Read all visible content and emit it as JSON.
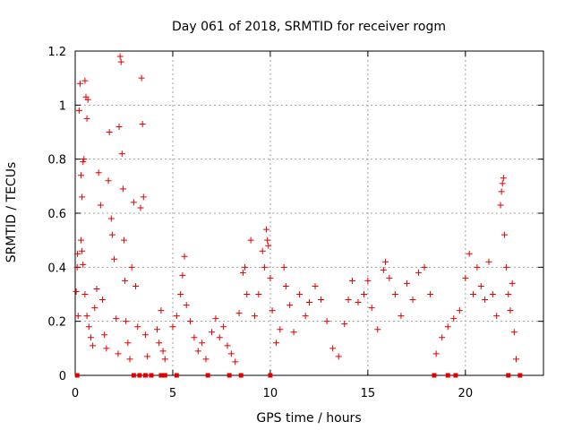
{
  "chart_data": {
    "type": "scatter",
    "title": "Day 061 of 2018, SRMTID for receiver rogm",
    "xlabel": "GPS time / hours",
    "ylabel": "SRMTID / TECUs",
    "xlim": [
      0,
      24
    ],
    "ylim": [
      0,
      1.2
    ],
    "xticks": [
      0,
      5,
      10,
      15,
      20
    ],
    "yticks": [
      0,
      0.2,
      0.4,
      0.6,
      0.8,
      1.0,
      1.2
    ],
    "xtick_labels": [
      "0",
      "5",
      "10",
      "15",
      "20"
    ],
    "ytick_labels": [
      "0",
      "0.2",
      "0.4",
      "0.6",
      "0.8",
      "1",
      "1.2"
    ],
    "grid": true,
    "marker": "plus",
    "color": "#e00000",
    "series": [
      {
        "values": [
          {
            "x": 0.05,
            "y": 0.31
          },
          {
            "x": 0.1,
            "y": 0.4
          },
          {
            "x": 0.12,
            "y": 0.45
          },
          {
            "x": 0.15,
            "y": 0.22
          },
          {
            "x": 0.2,
            "y": 0.98
          },
          {
            "x": 0.25,
            "y": 1.08
          },
          {
            "x": 0.3,
            "y": 0.74
          },
          {
            "x": 0.35,
            "y": 0.66
          },
          {
            "x": 0.4,
            "y": 0.79
          },
          {
            "x": 0.45,
            "y": 0.8
          },
          {
            "x": 0.5,
            "y": 1.09
          },
          {
            "x": 0.55,
            "y": 1.03
          },
          {
            "x": 0.6,
            "y": 0.95
          },
          {
            "x": 0.65,
            "y": 1.02
          },
          {
            "x": 0.3,
            "y": 0.5
          },
          {
            "x": 0.35,
            "y": 0.46
          },
          {
            "x": 0.4,
            "y": 0.41
          },
          {
            "x": 0.5,
            "y": 0.3
          },
          {
            "x": 0.6,
            "y": 0.22
          },
          {
            "x": 0.7,
            "y": 0.18
          },
          {
            "x": 0.8,
            "y": 0.14
          },
          {
            "x": 0.9,
            "y": 0.11
          },
          {
            "x": 1.0,
            "y": 0.25
          },
          {
            "x": 1.1,
            "y": 0.32
          },
          {
            "x": 1.2,
            "y": 0.75
          },
          {
            "x": 1.3,
            "y": 0.63
          },
          {
            "x": 1.4,
            "y": 0.28
          },
          {
            "x": 1.5,
            "y": 0.15
          },
          {
            "x": 1.6,
            "y": 0.1
          },
          {
            "x": 1.7,
            "y": 0.72
          },
          {
            "x": 1.75,
            "y": 0.9
          },
          {
            "x": 1.85,
            "y": 0.58
          },
          {
            "x": 1.9,
            "y": 0.52
          },
          {
            "x": 2.0,
            "y": 0.43
          },
          {
            "x": 2.1,
            "y": 0.21
          },
          {
            "x": 2.2,
            "y": 0.08
          },
          {
            "x": 2.25,
            "y": 0.92
          },
          {
            "x": 2.3,
            "y": 1.18
          },
          {
            "x": 2.35,
            "y": 1.16
          },
          {
            "x": 2.4,
            "y": 0.82
          },
          {
            "x": 2.45,
            "y": 0.69
          },
          {
            "x": 2.5,
            "y": 0.5
          },
          {
            "x": 2.55,
            "y": 0.35
          },
          {
            "x": 2.6,
            "y": 0.2
          },
          {
            "x": 2.7,
            "y": 0.12
          },
          {
            "x": 2.8,
            "y": 0.06
          },
          {
            "x": 2.9,
            "y": 0.4
          },
          {
            "x": 3.0,
            "y": 0.64
          },
          {
            "x": 3.1,
            "y": 0.33
          },
          {
            "x": 3.2,
            "y": 0.18
          },
          {
            "x": 3.35,
            "y": 0.62
          },
          {
            "x": 3.4,
            "y": 1.1
          },
          {
            "x": 3.45,
            "y": 0.93
          },
          {
            "x": 3.5,
            "y": 0.66
          },
          {
            "x": 3.6,
            "y": 0.15
          },
          {
            "x": 3.7,
            "y": 0.07
          },
          {
            "x": 4.2,
            "y": 0.17
          },
          {
            "x": 4.3,
            "y": 0.12
          },
          {
            "x": 4.4,
            "y": 0.24
          },
          {
            "x": 4.5,
            "y": 0.09
          },
          {
            "x": 4.6,
            "y": 0.06
          },
          {
            "x": 5.0,
            "y": 0.18
          },
          {
            "x": 5.2,
            "y": 0.22
          },
          {
            "x": 5.4,
            "y": 0.3
          },
          {
            "x": 5.5,
            "y": 0.37
          },
          {
            "x": 5.6,
            "y": 0.44
          },
          {
            "x": 5.7,
            "y": 0.26
          },
          {
            "x": 5.9,
            "y": 0.2
          },
          {
            "x": 6.1,
            "y": 0.14
          },
          {
            "x": 6.3,
            "y": 0.09
          },
          {
            "x": 6.5,
            "y": 0.12
          },
          {
            "x": 6.7,
            "y": 0.06
          },
          {
            "x": 7.0,
            "y": 0.16
          },
          {
            "x": 7.2,
            "y": 0.21
          },
          {
            "x": 7.4,
            "y": 0.14
          },
          {
            "x": 7.6,
            "y": 0.18
          },
          {
            "x": 7.8,
            "y": 0.11
          },
          {
            "x": 8.0,
            "y": 0.08
          },
          {
            "x": 8.2,
            "y": 0.05
          },
          {
            "x": 8.4,
            "y": 0.23
          },
          {
            "x": 8.6,
            "y": 0.38
          },
          {
            "x": 8.7,
            "y": 0.4
          },
          {
            "x": 8.8,
            "y": 0.3
          },
          {
            "x": 9.0,
            "y": 0.5
          },
          {
            "x": 9.2,
            "y": 0.22
          },
          {
            "x": 9.4,
            "y": 0.3
          },
          {
            "x": 9.6,
            "y": 0.46
          },
          {
            "x": 9.7,
            "y": 0.4
          },
          {
            "x": 9.8,
            "y": 0.54
          },
          {
            "x": 9.85,
            "y": 0.5
          },
          {
            "x": 9.9,
            "y": 0.48
          },
          {
            "x": 10.0,
            "y": 0.36
          },
          {
            "x": 10.1,
            "y": 0.24
          },
          {
            "x": 10.3,
            "y": 0.12
          },
          {
            "x": 10.5,
            "y": 0.17
          },
          {
            "x": 10.7,
            "y": 0.4
          },
          {
            "x": 10.8,
            "y": 0.33
          },
          {
            "x": 11.0,
            "y": 0.26
          },
          {
            "x": 11.2,
            "y": 0.16
          },
          {
            "x": 11.5,
            "y": 0.3
          },
          {
            "x": 11.8,
            "y": 0.22
          },
          {
            "x": 12.0,
            "y": 0.27
          },
          {
            "x": 12.3,
            "y": 0.33
          },
          {
            "x": 12.6,
            "y": 0.28
          },
          {
            "x": 12.9,
            "y": 0.2
          },
          {
            "x": 13.2,
            "y": 0.1
          },
          {
            "x": 13.5,
            "y": 0.07
          },
          {
            "x": 13.8,
            "y": 0.19
          },
          {
            "x": 14.0,
            "y": 0.28
          },
          {
            "x": 14.2,
            "y": 0.35
          },
          {
            "x": 14.5,
            "y": 0.27
          },
          {
            "x": 14.8,
            "y": 0.3
          },
          {
            "x": 15.0,
            "y": 0.35
          },
          {
            "x": 15.2,
            "y": 0.25
          },
          {
            "x": 15.5,
            "y": 0.17
          },
          {
            "x": 15.8,
            "y": 0.39
          },
          {
            "x": 15.9,
            "y": 0.42
          },
          {
            "x": 16.1,
            "y": 0.36
          },
          {
            "x": 16.4,
            "y": 0.3
          },
          {
            "x": 16.7,
            "y": 0.22
          },
          {
            "x": 17.0,
            "y": 0.34
          },
          {
            "x": 17.3,
            "y": 0.28
          },
          {
            "x": 17.6,
            "y": 0.38
          },
          {
            "x": 17.9,
            "y": 0.4
          },
          {
            "x": 18.2,
            "y": 0.3
          },
          {
            "x": 18.5,
            "y": 0.08
          },
          {
            "x": 18.8,
            "y": 0.14
          },
          {
            "x": 19.1,
            "y": 0.18
          },
          {
            "x": 19.4,
            "y": 0.21
          },
          {
            "x": 19.7,
            "y": 0.24
          },
          {
            "x": 20.0,
            "y": 0.36
          },
          {
            "x": 20.2,
            "y": 0.45
          },
          {
            "x": 20.4,
            "y": 0.3
          },
          {
            "x": 20.6,
            "y": 0.4
          },
          {
            "x": 20.8,
            "y": 0.33
          },
          {
            "x": 21.0,
            "y": 0.28
          },
          {
            "x": 21.2,
            "y": 0.42
          },
          {
            "x": 21.4,
            "y": 0.3
          },
          {
            "x": 21.6,
            "y": 0.22
          },
          {
            "x": 21.8,
            "y": 0.63
          },
          {
            "x": 21.85,
            "y": 0.68
          },
          {
            "x": 21.9,
            "y": 0.71
          },
          {
            "x": 21.95,
            "y": 0.73
          },
          {
            "x": 22.0,
            "y": 0.52
          },
          {
            "x": 22.1,
            "y": 0.4
          },
          {
            "x": 22.2,
            "y": 0.3
          },
          {
            "x": 22.3,
            "y": 0.24
          },
          {
            "x": 22.4,
            "y": 0.34
          },
          {
            "x": 22.5,
            "y": 0.16
          },
          {
            "x": 22.6,
            "y": 0.06
          }
        ]
      }
    ],
    "zero_markers": [
      0.1,
      3.0,
      3.3,
      3.6,
      3.9,
      4.4,
      4.6,
      5.2,
      6.8,
      7.9,
      8.5,
      10.0,
      18.4,
      19.1,
      19.5,
      22.2,
      22.8
    ]
  }
}
